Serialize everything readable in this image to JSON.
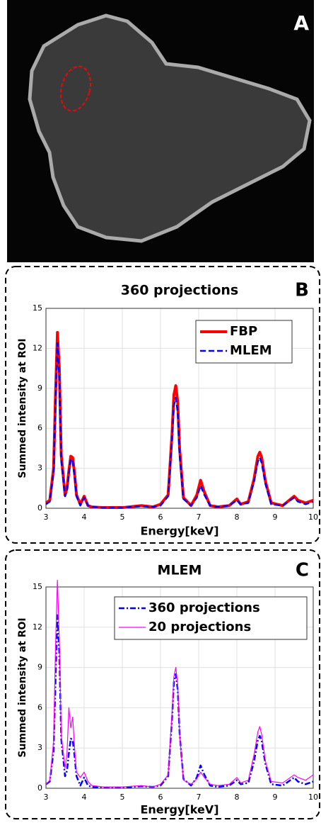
{
  "image_panel": {
    "label": "A"
  },
  "chart_data": [
    {
      "type": "line",
      "panel_label": "B",
      "title": "360 projections",
      "x_label": "Energy[keV]",
      "y_label": "Summed intensity at ROI",
      "x": [
        3,
        3.1,
        3.2,
        3.25,
        3.3,
        3.35,
        3.4,
        3.5,
        3.55,
        3.6,
        3.65,
        3.7,
        3.75,
        3.8,
        3.9,
        4.0,
        4.1,
        4.2,
        4.5,
        5,
        5.5,
        5.8,
        6.0,
        6.2,
        6.3,
        6.35,
        6.4,
        6.45,
        6.5,
        6.6,
        6.8,
        6.95,
        7.05,
        7.15,
        7.3,
        7.5,
        7.8,
        8.0,
        8.1,
        8.3,
        8.45,
        8.55,
        8.6,
        8.65,
        8.75,
        8.9,
        9.2,
        9.5,
        9.6,
        9.8,
        10
      ],
      "series": [
        {
          "name": "FBP",
          "color": "#ff0000",
          "style": "solid",
          "line_width": 4,
          "values": [
            0.4,
            0.6,
            3.0,
            8.5,
            13.2,
            10.5,
            4.0,
            1.0,
            1.5,
            2.8,
            3.9,
            3.8,
            2.6,
            1.0,
            0.3,
            0.9,
            0.2,
            0.1,
            0.05,
            0.05,
            0.2,
            0.1,
            0.3,
            1.0,
            5.5,
            8.5,
            9.2,
            8.0,
            4.5,
            0.8,
            0.2,
            1.0,
            2.1,
            1.2,
            0.2,
            0.1,
            0.2,
            0.7,
            0.3,
            0.5,
            2.2,
            3.9,
            4.2,
            3.8,
            2.0,
            0.4,
            0.2,
            0.9,
            0.6,
            0.4,
            0.6
          ]
        },
        {
          "name": "MLEM",
          "color": "#0000ff",
          "style": "dashed",
          "line_width": 2.5,
          "values": [
            0.3,
            0.5,
            2.7,
            7.8,
            12.4,
            9.8,
            3.6,
            0.9,
            1.3,
            2.6,
            3.7,
            3.5,
            2.4,
            0.9,
            0.2,
            0.8,
            0.2,
            0.1,
            0.05,
            0.05,
            0.15,
            0.1,
            0.2,
            0.9,
            5.0,
            7.7,
            8.3,
            7.2,
            4.0,
            0.7,
            0.2,
            0.8,
            1.7,
            1.0,
            0.2,
            0.1,
            0.2,
            0.6,
            0.3,
            0.4,
            2.0,
            3.5,
            3.8,
            3.4,
            1.8,
            0.3,
            0.2,
            0.8,
            0.5,
            0.3,
            0.5
          ]
        }
      ],
      "xlim": [
        3,
        10
      ],
      "xticks": [
        3,
        4,
        5,
        6,
        7,
        8,
        9,
        10
      ],
      "ylim": [
        0,
        15
      ],
      "yticks": [
        0,
        3,
        6,
        9,
        12,
        15
      ],
      "grid": true,
      "legend": "upper right"
    },
    {
      "type": "line",
      "panel_label": "C",
      "title": "MLEM",
      "x_label": "Energy[keV]",
      "y_label": "Summed intensity at ROI",
      "x": [
        3,
        3.1,
        3.2,
        3.25,
        3.3,
        3.35,
        3.4,
        3.5,
        3.55,
        3.6,
        3.65,
        3.7,
        3.75,
        3.8,
        3.9,
        4.0,
        4.1,
        4.2,
        4.5,
        5,
        5.5,
        5.8,
        6.0,
        6.2,
        6.3,
        6.35,
        6.4,
        6.45,
        6.5,
        6.6,
        6.8,
        6.95,
        7.05,
        7.15,
        7.3,
        7.5,
        7.8,
        8.0,
        8.1,
        8.3,
        8.45,
        8.55,
        8.6,
        8.65,
        8.75,
        8.9,
        9.2,
        9.5,
        9.6,
        9.8,
        10
      ],
      "series": [
        {
          "name": "360 projections",
          "color": "#0000ff",
          "style": "dashdot",
          "line_width": 2.5,
          "values": [
            0.3,
            0.5,
            2.8,
            8.0,
            12.9,
            10.1,
            3.7,
            0.9,
            1.3,
            2.6,
            3.7,
            3.6,
            2.4,
            0.9,
            0.2,
            0.8,
            0.2,
            0.1,
            0.05,
            0.05,
            0.15,
            0.1,
            0.2,
            0.9,
            5.1,
            7.9,
            8.5,
            7.4,
            4.1,
            0.7,
            0.2,
            0.8,
            1.7,
            1.0,
            0.2,
            0.1,
            0.2,
            0.6,
            0.3,
            0.4,
            2.0,
            3.6,
            3.9,
            3.5,
            1.8,
            0.3,
            0.2,
            0.8,
            0.5,
            0.3,
            0.5
          ]
        },
        {
          "name": "20 projections",
          "color": "#ff00ff",
          "style": "solid",
          "line_width": 1.2,
          "values": [
            0.3,
            0.6,
            3.5,
            10.5,
            15.5,
            11,
            4.0,
            1.5,
            2.5,
            6.0,
            4.5,
            5.3,
            3.0,
            1.2,
            0.8,
            1.2,
            0.5,
            0.2,
            0.1,
            0.1,
            0.2,
            0.1,
            0.3,
            1.0,
            5.5,
            8.3,
            9.0,
            7.8,
            4.0,
            0.6,
            0.3,
            0.7,
            1.2,
            0.8,
            0.3,
            0.2,
            0.3,
            0.8,
            0.4,
            0.6,
            2.5,
            4.2,
            4.6,
            4.0,
            2.0,
            0.5,
            0.4,
            1.0,
            0.8,
            0.6,
            1.0
          ]
        }
      ],
      "xlim": [
        3,
        10
      ],
      "xticks": [
        3,
        4,
        5,
        6,
        7,
        8,
        9,
        10
      ],
      "ylim": [
        0,
        15
      ],
      "yticks": [
        0,
        3,
        6,
        9,
        12,
        15
      ],
      "grid": true,
      "legend": "upper right"
    }
  ]
}
